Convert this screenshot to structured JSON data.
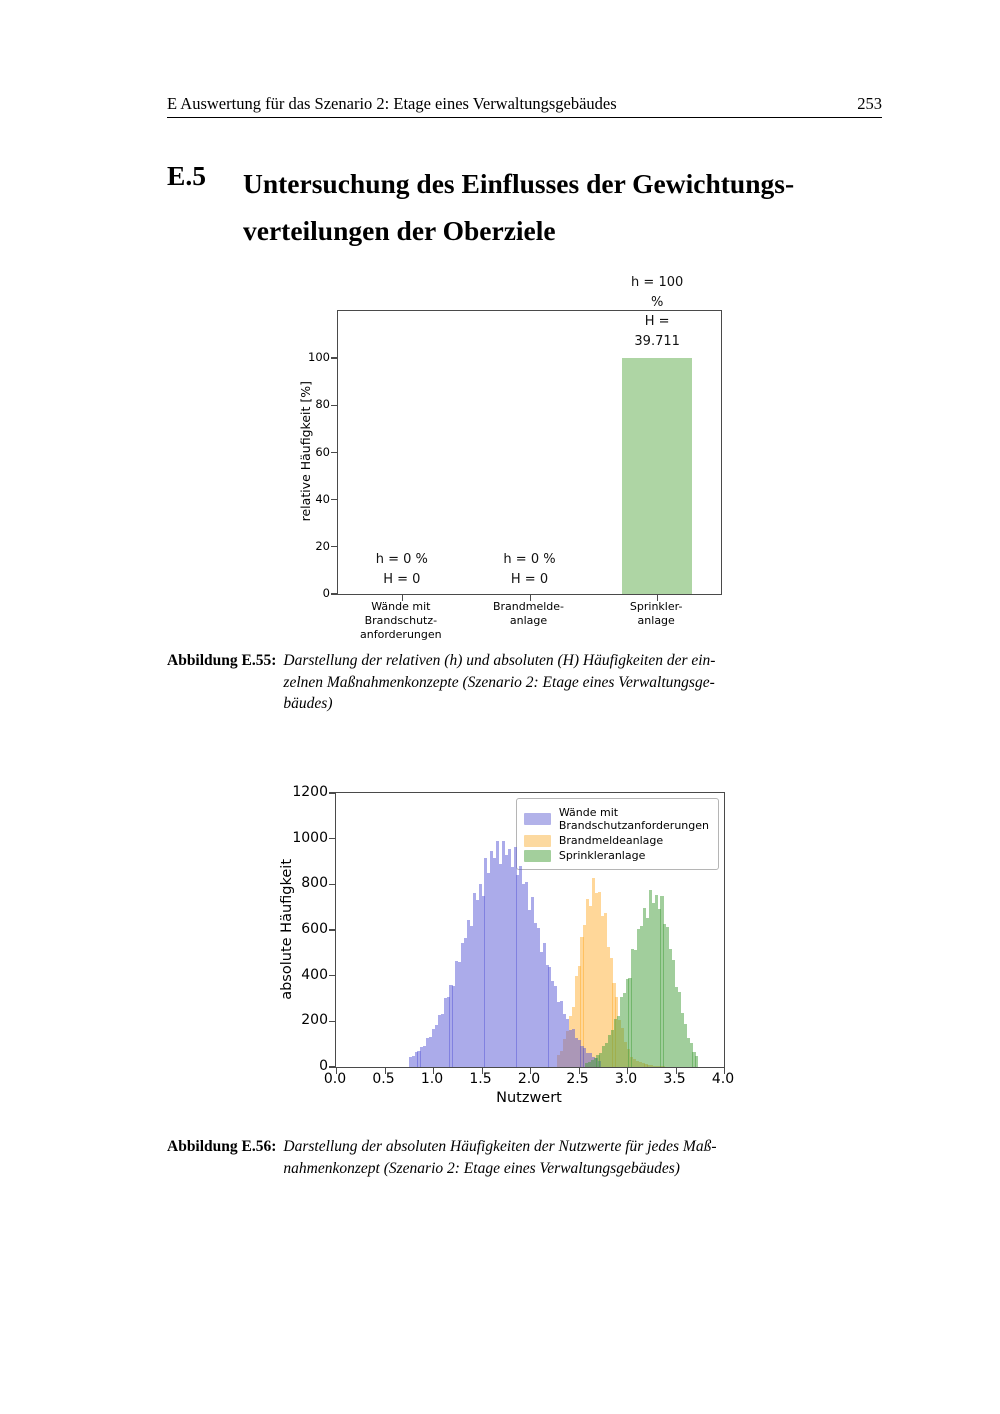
{
  "page": {
    "header_title": "E Auswertung für das Szenario 2: Etage eines Verwaltungsgebäudes",
    "page_number": "253"
  },
  "section": {
    "number": "E.5",
    "title_lines": [
      "Untersuchung des Einflusses der Gewichtungs-",
      "verteilungen der Oberziele"
    ]
  },
  "captions": [
    {
      "label": "Abbildung E.55:",
      "lines": [
        "Darstellung der relativen (h) und absoluten (H) Häufigkeiten der ein-",
        "zelnen Maßnahmenkonzepte (Szenario 2: Etage eines Verwaltungsge-",
        "bäudes)"
      ]
    },
    {
      "label": "Abbildung E.56:",
      "lines": [
        "Darstellung der absoluten Häufigkeiten der Nutzwerte für jedes Maß-",
        "nahmenkonzept (Szenario 2: Etage eines Verwaltungsgebäudes)"
      ]
    }
  ],
  "chart_data": [
    {
      "type": "bar",
      "ylabel": "relative Häufigkeit [%]",
      "ylim": [
        0,
        120
      ],
      "yticks": [
        0,
        20,
        40,
        60,
        80,
        100
      ],
      "categories": [
        "Wände mit\nBrandschutz-\nanforderungen",
        "Brandmelde-\nanlage",
        "Sprinkler-\nanlage"
      ],
      "values": [
        0,
        0,
        100
      ],
      "bar_color": "#aed5a4",
      "annotations": [
        {
          "lines": [
            "h = 0 %",
            "H = 0"
          ]
        },
        {
          "lines": [
            "h = 0 %",
            "H = 0"
          ]
        },
        {
          "lines": [
            "h = 100 %",
            "H = 39.711"
          ]
        }
      ]
    },
    {
      "type": "histogram",
      "xlabel": "Nutzwert",
      "ylabel": "absolute Häufigkeit",
      "xlim": [
        0,
        4
      ],
      "ylim": [
        0,
        1200
      ],
      "xticks": [
        "0.0",
        "0.5",
        "1.0",
        "1.5",
        "2.0",
        "2.5",
        "3.0",
        "3.5",
        "4.0"
      ],
      "yticks": [
        0,
        200,
        400,
        600,
        800,
        1000,
        1200
      ],
      "legend_position": "upper right",
      "series": [
        {
          "name": "Wände mit Brandschutzanforderungen",
          "legend_label": "Wände mit\nBrandschutzanforderungen",
          "fill": "rgba(88,88,214,0.5)",
          "swatch": "#b2b2e9",
          "bin_start": 0.75,
          "bin_width": 0.03,
          "values": [
            43,
            47,
            64,
            70,
            87,
            92,
            127,
            133,
            168,
            185,
            226,
            231,
            302,
            308,
            360,
            357,
            465,
            460,
            545,
            564,
            646,
            619,
            760,
            730,
            801,
            747,
            915,
            848,
            944,
            917,
            988,
            891,
            990,
            927,
            955,
            876,
            964,
            839,
            879,
            802,
            811,
            687,
            745,
            631,
            611,
            503,
            545,
            446,
            438,
            375,
            357,
            285,
            289,
            231,
            210,
            162,
            165,
            126,
            117,
            94,
            84,
            63,
            60,
            46,
            38,
            28
          ]
        },
        {
          "name": "Brandmeldeanlage",
          "legend_label": "Brandmeldeanlage",
          "fill": "rgba(255,166,28,0.45)",
          "swatch": "#fcd9a0",
          "bin_start": 2.28,
          "bin_width": 0.03,
          "values": [
            53,
            72,
            122,
            157,
            224,
            265,
            399,
            441,
            571,
            624,
            736,
            707,
            828,
            763,
            768,
            660,
            675,
            526,
            478,
            368,
            306,
            206,
            173,
            111,
            78,
            46,
            34,
            28,
            22,
            17,
            13,
            10,
            8,
            6,
            5,
            4,
            3
          ]
        },
        {
          "name": "Sprinkleranlage",
          "legend_label": "Sprinkleranlage",
          "fill": "rgba(68,158,58,0.5)",
          "swatch": "#a3cf9c",
          "bin_start": 2.565,
          "bin_width": 0.03,
          "values": [
            17,
            20,
            32,
            39,
            53,
            60,
            91,
            104,
            140,
            164,
            210,
            225,
            306,
            323,
            387,
            391,
            516,
            511,
            604,
            618,
            697,
            653,
            776,
            718,
            752,
            690,
            747,
            625,
            615,
            515,
            470,
            351,
            327,
            235,
            188,
            125,
            107,
            67,
            50
          ]
        }
      ]
    }
  ]
}
